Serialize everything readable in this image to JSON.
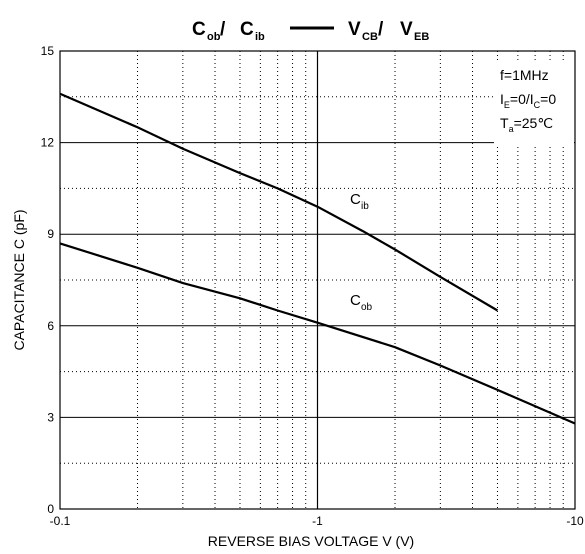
{
  "chart_data": {
    "type": "line",
    "title": {
      "left_main": "C",
      "left_sub": "ob",
      "left_sep": " / ",
      "left2_main": "C",
      "left2_sub": "ib",
      "right_main": "V",
      "right_sub": "CB",
      "right_sep": " / ",
      "right2_main": "V",
      "right2_sub": "EB"
    },
    "xlabel": "REVERSE BIAS VOLTAGE   V   (V)",
    "ylabel": "CAPACITANCE   C   (pF)",
    "xscale": "log",
    "xlim": [
      0.1,
      10
    ],
    "ylim": [
      0,
      15
    ],
    "x_tick_labels": [
      "-0.1",
      "-1",
      "-10"
    ],
    "y_tick_labels": [
      "0",
      "3",
      "6",
      "9",
      "12",
      "15"
    ],
    "grid": true,
    "conditions": {
      "freq": "f=1MHz",
      "bias_a_main": "I",
      "bias_a_sub": "E",
      "bias_mid": "=0/I",
      "bias_b_sub": "C",
      "bias_end": "=0",
      "temp_main": "T",
      "temp_sub": "a",
      "temp_end": "=25℃"
    },
    "series": [
      {
        "name_main": "C",
        "name_sub": "ib",
        "x": [
          0.1,
          0.2,
          0.3,
          0.5,
          0.7,
          1.0,
          1.5,
          2.0,
          3.0,
          5.0
        ],
        "y": [
          13.6,
          12.5,
          11.8,
          11.0,
          10.5,
          9.9,
          9.1,
          8.5,
          7.6,
          6.5
        ]
      },
      {
        "name_main": "C",
        "name_sub": "ob",
        "x": [
          0.1,
          0.2,
          0.3,
          0.5,
          0.7,
          1.0,
          2.0,
          3.0,
          5.0,
          10.0
        ],
        "y": [
          8.7,
          7.9,
          7.4,
          6.9,
          6.5,
          6.1,
          5.3,
          4.7,
          3.9,
          2.8
        ]
      }
    ]
  }
}
